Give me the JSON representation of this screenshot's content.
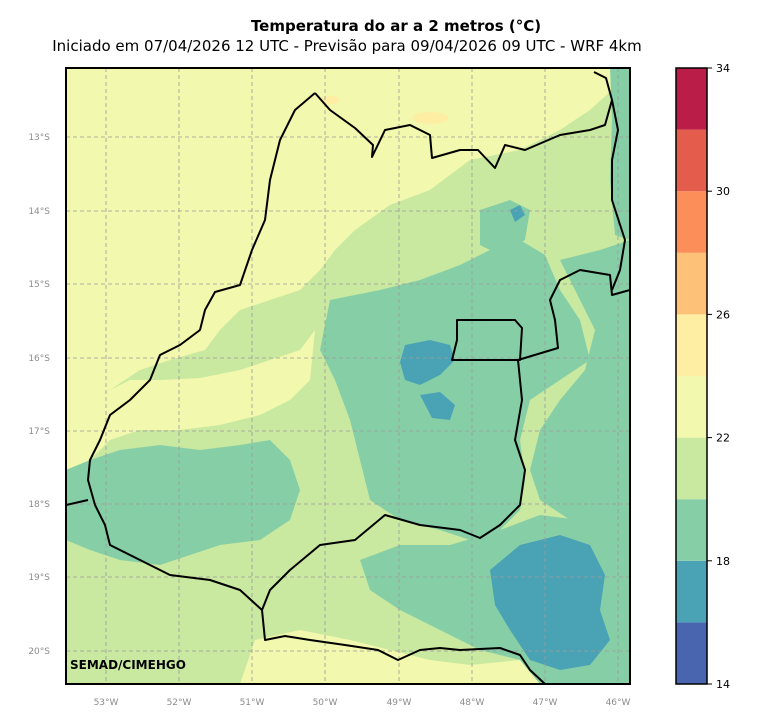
{
  "chart_data": {
    "type": "heatmap",
    "title": "Temperatura do ar a 2 metros (°C)",
    "subtitle": "Iniciado em 07/04/2026 12 UTC - Previsão para 09/04/2026 09 UTC - WRF 4km",
    "credit": "SEMAD/CIMEHGO",
    "lat_ticks": [
      "13°S",
      "14°S",
      "15°S",
      "16°S",
      "17°S",
      "18°S",
      "19°S",
      "20°S"
    ],
    "lon_ticks": [
      "53°W",
      "52°W",
      "51°W",
      "50°W",
      "49°W",
      "48°W",
      "47°W",
      "46°W"
    ],
    "grid": true,
    "colorbar": {
      "min": 14,
      "max": 34,
      "tick_labels": [
        "34",
        "30",
        "26",
        "22",
        "18",
        "14"
      ],
      "bins": [
        {
          "from": 14,
          "to": 16,
          "color": "#4a65b0"
        },
        {
          "from": 16,
          "to": 18,
          "color": "#4aa3b5"
        },
        {
          "from": 18,
          "to": 20,
          "color": "#86cfa6"
        },
        {
          "from": 20,
          "to": 22,
          "color": "#c9e8a0"
        },
        {
          "from": 22,
          "to": 24,
          "color": "#f2f8ad"
        },
        {
          "from": 24,
          "to": 26,
          "color": "#fdeea4"
        },
        {
          "from": 26,
          "to": 28,
          "color": "#fdc178"
        },
        {
          "from": 28,
          "to": 30,
          "color": "#fb8e59"
        },
        {
          "from": 30,
          "to": 32,
          "color": "#e45c4c"
        },
        {
          "from": 32,
          "to": 34,
          "color": "#ba1e48"
        }
      ]
    }
  }
}
